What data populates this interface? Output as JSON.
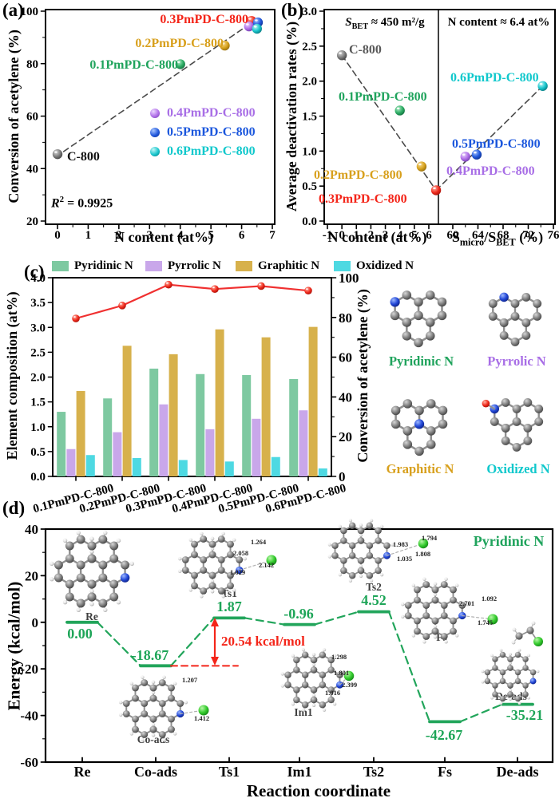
{
  "colors": {
    "gray": "#595959",
    "green": "#1fa35c",
    "gold": "#d8a01d",
    "red": "#f42519",
    "purple": "#a86ee6",
    "blue": "#1a56dd",
    "cyan": "#10c8cc",
    "bar_green": "#7ec9a1",
    "bar_purple": "#c9a7ea",
    "bar_gold": "#d7b14c",
    "bar_cyan": "#4ed9e2",
    "line_red": "#f03030",
    "level_green": "#22a55b",
    "annotation_red": "#f42519"
  },
  "chart_data": [
    {
      "id": "a",
      "type": "scatter",
      "tag": "(a)",
      "xlabel": "N content (at%)",
      "ylabel": "Conversion of acetylene (%)",
      "xlim": [
        -0.4,
        7.1
      ],
      "ylim": [
        20,
        100
      ],
      "xticks": [
        0,
        1,
        2,
        3,
        4,
        5,
        6,
        7
      ],
      "yticks": [
        20,
        40,
        60,
        80,
        100
      ],
      "r2": {
        "pre": "R",
        "sup": "2",
        "rest": " = 0.9925"
      },
      "trendline": {
        "x1": 0.2,
        "y1": 46.5,
        "x2": 6.35,
        "y2": 95.8
      },
      "points": [
        {
          "label": "C-800",
          "x": 0,
          "y": 45.5,
          "color": "gray"
        },
        {
          "label": "0.1PmPD-C-800",
          "x": 4.0,
          "y": 79.8,
          "color": "green"
        },
        {
          "label": "0.2PmPD-C-800",
          "x": 5.45,
          "y": 86.9,
          "color": "gold"
        },
        {
          "label": "0.3PmPD-C-800",
          "x": 6.32,
          "y": 96.3,
          "color": "red"
        },
        {
          "label": "0.4PmPD-C-800",
          "x": 6.24,
          "y": 94.2,
          "color": "purple"
        },
        {
          "label": "0.5PmPD-C-800",
          "x": 6.53,
          "y": 95.7,
          "color": "blue"
        },
        {
          "label": "0.6PmPD-C-800",
          "x": 6.5,
          "y": 93.3,
          "color": "cyan"
        }
      ],
      "legend": [
        {
          "label": "0.4PmPD-C-800",
          "color": "purple"
        },
        {
          "label": "0.5PmPD-C-800",
          "color": "blue"
        },
        {
          "label": "0.6PmPD-C-800",
          "color": "cyan"
        }
      ]
    },
    {
      "id": "b",
      "type": "scatter",
      "tag": "(b)",
      "ylabel": "Average deactivation rates (%)",
      "ylim": [
        0,
        3
      ],
      "yticks": [
        "0.0",
        "0.5",
        "1.0",
        "1.5",
        "2.0",
        "2.5",
        "3.0"
      ],
      "left": {
        "xlabel": "N content (at%)",
        "xticks": [
          -1,
          0,
          1,
          2,
          3,
          4,
          5,
          6
        ],
        "annotation": {
          "s": "S",
          "sub": "BET",
          "rest": " ≈ 450 m²/g"
        },
        "points": [
          {
            "label": "C-800",
            "x": 0,
            "y": 2.37,
            "color": "gray"
          },
          {
            "label": "0.1PmPD-C-800",
            "x": 4.0,
            "y": 1.58,
            "color": "green"
          },
          {
            "label": "0.2PmPD-C-800",
            "x": 5.5,
            "y": 0.78,
            "color": "gold"
          },
          {
            "label": "0.3PmPD-C-800",
            "x": 6.5,
            "y": 0.44,
            "color": "red"
          }
        ]
      },
      "right": {
        "xlabel": {
          "s1": "S",
          "sub1": "micro",
          "s2": "/S",
          "sub2": "BET",
          "rest": " (%)"
        },
        "xticks": [
          60,
          64,
          68,
          72,
          76
        ],
        "annotation": "N content ≈ 6.4 at%",
        "points": [
          {
            "label": "0.4PmPD-C-800",
            "x": 62.0,
            "y": 0.92,
            "color": "purple"
          },
          {
            "label": "0.5PmPD-C-800",
            "x": 63.8,
            "y": 0.95,
            "color": "blue"
          },
          {
            "label": "0.6PmPD-C-800",
            "x": 74.3,
            "y": 1.93,
            "color": "cyan"
          }
        ]
      }
    },
    {
      "id": "c",
      "type": "bar+line",
      "tag": "(c)",
      "ylabel_left": "Element composition (at%)",
      "ylabel_right": "Conversion of acetylene (%)",
      "ylim_left": [
        0,
        4
      ],
      "ylim_right": [
        0,
        100
      ],
      "yticks_left": [
        "0.0",
        "0.5",
        "1.0",
        "1.5",
        "2.0",
        "2.5",
        "3.0",
        "3.5",
        "4.0"
      ],
      "yticks_right": [
        0,
        20,
        40,
        60,
        80,
        100
      ],
      "categories": [
        "0.1PmPD-C-800",
        "0.2PmPD-C-800",
        "0.3PmPD-C-800",
        "0.4PmPD-C-800",
        "0.5PmPD-C-800",
        "0.6PmPD-C-800"
      ],
      "series": [
        {
          "name": "Pyridinic N",
          "color": "#7ec9a1",
          "values": [
            1.3,
            1.57,
            2.17,
            2.06,
            2.04,
            1.96
          ]
        },
        {
          "name": "Pyrrolic N",
          "color": "#c9a7ea",
          "values": [
            0.55,
            0.89,
            1.45,
            0.95,
            1.16,
            1.33
          ]
        },
        {
          "name": "Graphitic N",
          "color": "#d7b14c",
          "values": [
            1.72,
            2.63,
            2.46,
            2.96,
            2.8,
            3.01
          ]
        },
        {
          "name": "Oxidized N",
          "color": "#4ed9e2",
          "values": [
            0.43,
            0.37,
            0.33,
            0.3,
            0.39,
            0.16
          ]
        }
      ],
      "line": {
        "name": "Conversion of acetylene",
        "color": "#f03030",
        "values": [
          79.5,
          86.0,
          96.5,
          94.3,
          95.8,
          93.5
        ]
      },
      "molecules": [
        {
          "name": "Pyridinic N",
          "color": "green"
        },
        {
          "name": "Pyrrolic N",
          "color": "purple"
        },
        {
          "name": "Graphitic N",
          "color": "gold"
        },
        {
          "name": "Oxidized N",
          "color": "cyan"
        }
      ]
    },
    {
      "id": "d",
      "type": "energy-diagram",
      "tag": "(d)",
      "ylabel": "Energy (kcal/mol)",
      "xlabel": "Reaction coordinate",
      "ylim": [
        -60,
        40
      ],
      "yticks": [
        -60,
        -40,
        -20,
        0,
        20,
        40
      ],
      "site": "Pyridinic N",
      "barrier": "20.54 kcal/mol",
      "stages": [
        {
          "name": "Re",
          "energy": 0.0,
          "display": "0.00"
        },
        {
          "name": "Co-ads",
          "energy": -18.67,
          "display": "-18.67"
        },
        {
          "name": "Ts1",
          "energy": 1.87,
          "display": "1.87"
        },
        {
          "name": "Im1",
          "energy": -0.96,
          "display": "-0.96"
        },
        {
          "name": "Ts2",
          "energy": 4.52,
          "display": "4.52"
        },
        {
          "name": "Fs",
          "energy": -42.67,
          "display": "-42.67"
        },
        {
          "name": "De-ads",
          "energy": -35.21,
          "display": "-35.21"
        }
      ],
      "bond_labels": {
        "Co-ads": [
          "1.207",
          "1.412"
        ],
        "Ts1": [
          "1.264",
          "2.058",
          "2.142",
          "1.029"
        ],
        "Im1": [
          "1.298",
          "1.801",
          "2.399",
          "1.016"
        ],
        "Ts2": [
          "1.983",
          "1.035",
          "1.794",
          "1.808"
        ],
        "Fs": [
          "2.701",
          "1.092",
          "1.745"
        ]
      }
    }
  ]
}
